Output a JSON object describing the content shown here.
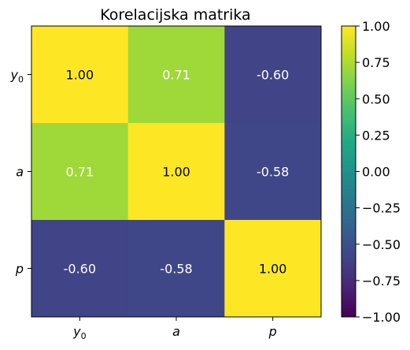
{
  "chart_data": {
    "type": "heatmap",
    "title": "Korelacijska matrika",
    "x_labels": [
      {
        "base": "y",
        "sub": "0"
      },
      {
        "base": "a",
        "sub": ""
      },
      {
        "base": "p",
        "sub": ""
      }
    ],
    "y_labels": [
      {
        "base": "y",
        "sub": "0"
      },
      {
        "base": "a",
        "sub": ""
      },
      {
        "base": "p",
        "sub": ""
      }
    ],
    "values": [
      [
        1.0,
        0.71,
        -0.6
      ],
      [
        0.71,
        1.0,
        -0.58
      ],
      [
        -0.6,
        -0.58,
        1.0
      ]
    ],
    "cell_labels": [
      [
        "1.00",
        "0.71",
        "-0.60"
      ],
      [
        "0.71",
        "1.00",
        "-0.58"
      ],
      [
        "-0.60",
        "-0.58",
        "1.00"
      ]
    ],
    "colormap": "viridis",
    "vmin": -1.0,
    "vmax": 1.0,
    "colorbar_ticks": [
      1.0,
      0.75,
      0.5,
      0.25,
      0.0,
      -0.25,
      -0.5,
      -0.75,
      -1.0
    ],
    "colorbar_tick_labels": [
      "1.00",
      "0.75",
      "0.50",
      "0.25",
      "0.00",
      "−0.25",
      "−0.50",
      "−0.75",
      "−1.00"
    ]
  }
}
